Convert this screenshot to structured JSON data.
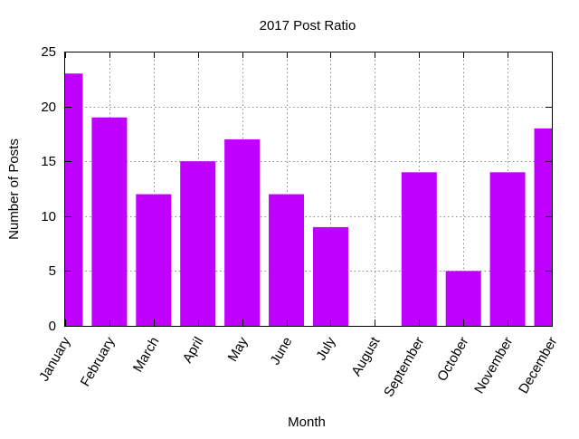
{
  "chart_data": {
    "type": "bar",
    "title": "2017 Post Ratio",
    "xlabel": "Month",
    "ylabel": "Number of Posts",
    "categories": [
      "January",
      "February",
      "March",
      "April",
      "May",
      "June",
      "July",
      "August",
      "September",
      "October",
      "November",
      "December"
    ],
    "values": [
      23,
      19,
      12,
      15,
      17,
      12,
      9,
      0,
      14,
      5,
      14,
      18
    ],
    "ylim": [
      0,
      25
    ],
    "yticks": [
      "0",
      "5",
      "10",
      "15",
      "20",
      "25"
    ],
    "grid": true,
    "bar_color": "#bf00ff"
  }
}
